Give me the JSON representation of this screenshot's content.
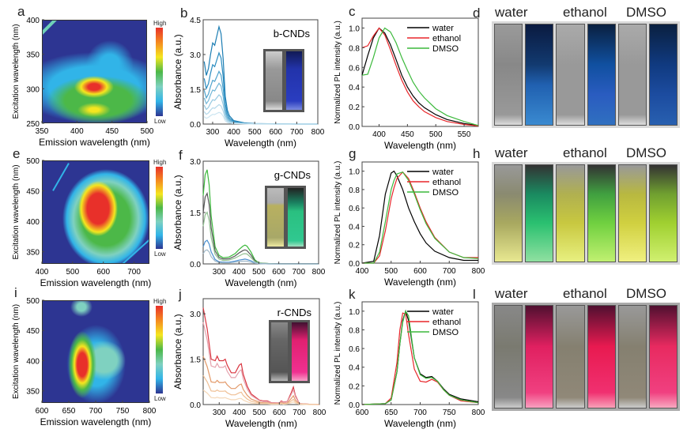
{
  "panels": {
    "a": "a",
    "b": "b",
    "c": "c",
    "d": "d",
    "e": "e",
    "f": "f",
    "g": "g",
    "h": "h",
    "i": "i",
    "j": "j",
    "k": "k",
    "l": "l"
  },
  "colorbar": {
    "high": "High",
    "low": "Low"
  },
  "photo_labels": [
    "water",
    "ethanol",
    "DMSO"
  ],
  "colors": {
    "water": "#000000",
    "ethanol": "#e8262a",
    "DMSO": "#3cb93c"
  },
  "chart_data": [
    {
      "id": "a",
      "type": "heatmap",
      "xlabel": "Emission wavelength (nm)",
      "ylabel": "Excitation wavelength (nm)",
      "xlim": [
        350,
        500
      ],
      "ylim": [
        250,
        400
      ],
      "xticks": [
        350,
        400,
        450,
        500
      ],
      "yticks": [
        250,
        300,
        350,
        400
      ],
      "peaks": [
        [
          410,
          308
        ],
        [
          410,
          272
        ]
      ]
    },
    {
      "id": "b",
      "type": "line",
      "title": "b-CNDs",
      "xlabel": "Wavelength (nm)",
      "ylabel": "Absorbance (a.u.)",
      "xlim": [
        255,
        800
      ],
      "ylim": [
        0,
        4.5
      ],
      "xticks": [
        300,
        400,
        500,
        600,
        700,
        800
      ],
      "yticks": [
        "0.0",
        "1.5",
        "3.0",
        "4.5"
      ],
      "x": [
        260,
        270,
        280,
        290,
        300,
        310,
        320,
        330,
        340,
        350,
        360,
        370,
        380,
        400,
        450,
        500,
        600,
        700,
        800
      ],
      "series": [
        {
          "color": "#1b7db3",
          "values": [
            2.7,
            2.1,
            2.4,
            3.0,
            3.5,
            3.4,
            3.8,
            4.2,
            3.9,
            2.8,
            1.2,
            0.6,
            0.35,
            0.15,
            0.05,
            0.02,
            0.01,
            0,
            0
          ]
        },
        {
          "color": "#2a8cc0",
          "values": [
            1.97,
            1.53,
            1.75,
            2.19,
            2.56,
            2.48,
            2.77,
            3.07,
            2.85,
            2.04,
            0.88,
            0.44,
            0.26,
            0.11,
            0.04,
            0.01,
            0.01,
            0,
            0
          ]
        },
        {
          "color": "#4fa3cd",
          "values": [
            1.46,
            1.13,
            1.3,
            1.62,
            1.89,
            1.84,
            2.05,
            2.27,
            2.11,
            1.51,
            0.65,
            0.32,
            0.19,
            0.08,
            0.03,
            0.01,
            0.01,
            0,
            0
          ]
        },
        {
          "color": "#74b8d8",
          "values": [
            1.13,
            0.88,
            1.01,
            1.26,
            1.47,
            1.43,
            1.6,
            1.76,
            1.64,
            1.18,
            0.5,
            0.25,
            0.15,
            0.06,
            0.02,
            0.01,
            0,
            0,
            0
          ]
        },
        {
          "color": "#96c9e1",
          "values": [
            0.81,
            0.63,
            0.72,
            0.9,
            1.05,
            1.02,
            1.14,
            1.26,
            1.17,
            0.84,
            0.36,
            0.18,
            0.11,
            0.05,
            0.02,
            0.01,
            0,
            0,
            0
          ]
        },
        {
          "color": "#b3d8ea",
          "values": [
            0.54,
            0.42,
            0.48,
            0.6,
            0.7,
            0.68,
            0.76,
            0.84,
            0.78,
            0.56,
            0.24,
            0.12,
            0.07,
            0.03,
            0.01,
            0,
            0,
            0,
            0
          ]
        },
        {
          "color": "#cbe5f1",
          "values": [
            0.32,
            0.25,
            0.29,
            0.36,
            0.42,
            0.41,
            0.46,
            0.5,
            0.47,
            0.34,
            0.14,
            0.07,
            0.04,
            0.02,
            0.01,
            0,
            0,
            0,
            0
          ]
        }
      ]
    },
    {
      "id": "c",
      "type": "line",
      "xlabel": "Wavelength (nm)",
      "ylabel": "Normalized PL intensity (a.u.)",
      "xlim": [
        370,
        575
      ],
      "ylim": [
        0,
        1.1
      ],
      "xticks": [
        400,
        450,
        500,
        550
      ],
      "yticks": [
        "0.0",
        "0.2",
        "0.4",
        "0.6",
        "0.8",
        "1.0"
      ],
      "legend": "top-right",
      "x": [
        370,
        380,
        390,
        400,
        410,
        420,
        430,
        440,
        450,
        460,
        470,
        480,
        500,
        520,
        550,
        575
      ],
      "series": [
        {
          "name": "water",
          "color": "#000000",
          "values": [
            0.52,
            0.72,
            0.9,
            1.0,
            0.95,
            0.83,
            0.68,
            0.52,
            0.4,
            0.31,
            0.24,
            0.19,
            0.12,
            0.07,
            0.03,
            0.01
          ]
        },
        {
          "name": "ethanol",
          "color": "#e8262a",
          "values": [
            0.8,
            0.82,
            0.92,
            1.0,
            0.93,
            0.78,
            0.62,
            0.47,
            0.35,
            0.26,
            0.2,
            0.15,
            0.09,
            0.05,
            0.02,
            0.005
          ]
        },
        {
          "name": "DMSO",
          "color": "#3cb93c",
          "values": [
            0.52,
            0.53,
            0.7,
            0.9,
            1.0,
            0.96,
            0.85,
            0.7,
            0.57,
            0.45,
            0.36,
            0.29,
            0.18,
            0.11,
            0.05,
            0.01
          ]
        }
      ]
    },
    {
      "id": "e",
      "type": "heatmap",
      "xlabel": "Emission wavelength (nm)",
      "ylabel": "Excitation wavelength (nm)",
      "xlim": [
        400,
        750
      ],
      "ylim": [
        330,
        500
      ],
      "xticks": [
        400,
        500,
        600,
        700
      ],
      "yticks": [
        350,
        400,
        450,
        500
      ],
      "peaks": [
        [
          545,
          430
        ]
      ]
    },
    {
      "id": "f",
      "type": "line",
      "title": "g-CNDs",
      "xlabel": "Wavelength (nm)",
      "ylabel": "Absorbance (a.u.)",
      "xlim": [
        220,
        800
      ],
      "ylim": [
        0,
        3.0
      ],
      "xticks": [
        300,
        400,
        500,
        600,
        700,
        800
      ],
      "yticks": [
        "0.0",
        "1.5",
        "3.0"
      ],
      "x": [
        220,
        230,
        240,
        250,
        260,
        280,
        300,
        320,
        350,
        380,
        400,
        420,
        430,
        440,
        460,
        480,
        500,
        550,
        600,
        700,
        800
      ],
      "series": [
        {
          "color": "#3cb93c",
          "values": [
            2.0,
            2.6,
            2.75,
            2.3,
            1.4,
            0.5,
            0.25,
            0.18,
            0.2,
            0.3,
            0.42,
            0.52,
            0.55,
            0.52,
            0.35,
            0.12,
            0.03,
            0.01,
            0.01,
            0.01,
            0.01
          ]
        },
        {
          "color": "#555555",
          "values": [
            1.5,
            1.95,
            2.06,
            1.73,
            1.05,
            0.38,
            0.19,
            0.14,
            0.15,
            0.23,
            0.32,
            0.39,
            0.41,
            0.39,
            0.26,
            0.09,
            0.02,
            0.01,
            0.01,
            0.01,
            0.01
          ]
        },
        {
          "color": "#8fbf8f",
          "values": [
            1.1,
            1.43,
            1.51,
            1.27,
            0.77,
            0.28,
            0.14,
            0.1,
            0.11,
            0.17,
            0.23,
            0.29,
            0.3,
            0.29,
            0.19,
            0.07,
            0.02,
            0.01,
            0,
            0,
            0
          ]
        },
        {
          "color": "#4a8fd0",
          "values": [
            0.5,
            0.65,
            0.69,
            0.58,
            0.35,
            0.13,
            0.06,
            0.05,
            0.05,
            0.08,
            0.11,
            0.13,
            0.14,
            0.13,
            0.09,
            0.03,
            0.01,
            0,
            0,
            0,
            0
          ]
        },
        {
          "color": "#a0b8c8",
          "values": [
            0.3,
            0.39,
            0.41,
            0.35,
            0.21,
            0.08,
            0.04,
            0.03,
            0.03,
            0.05,
            0.07,
            0.08,
            0.08,
            0.08,
            0.05,
            0.02,
            0.01,
            0,
            0,
            0,
            0
          ]
        }
      ]
    },
    {
      "id": "g",
      "type": "line",
      "xlabel": "Wavelength (nm)",
      "ylabel": "Normalized PL intensity (a.u.)",
      "xlim": [
        400,
        800
      ],
      "ylim": [
        0,
        1.1
      ],
      "xticks": [
        400,
        500,
        600,
        700,
        800
      ],
      "yticks": [
        "0.0",
        "0.2",
        "0.4",
        "0.6",
        "0.8",
        "1.0"
      ],
      "legend": "top-right",
      "x": [
        400,
        440,
        460,
        480,
        500,
        510,
        520,
        540,
        560,
        580,
        600,
        620,
        650,
        700,
        750,
        800
      ],
      "series": [
        {
          "name": "water",
          "color": "#000000",
          "values": [
            0,
            0.02,
            0.3,
            0.75,
            0.98,
            1.0,
            0.95,
            0.8,
            0.6,
            0.45,
            0.32,
            0.22,
            0.13,
            0.06,
            0.03,
            0.03
          ]
        },
        {
          "name": "ethanol",
          "color": "#e8262a",
          "values": [
            0,
            0,
            0.08,
            0.35,
            0.7,
            0.82,
            0.92,
            0.99,
            0.92,
            0.77,
            0.6,
            0.45,
            0.28,
            0.12,
            0.06,
            0.06
          ]
        },
        {
          "name": "DMSO",
          "color": "#3cb93c",
          "values": [
            0,
            0,
            0.12,
            0.45,
            0.8,
            0.9,
            0.97,
            0.99,
            0.9,
            0.75,
            0.58,
            0.43,
            0.27,
            0.12,
            0.06,
            0.05
          ]
        }
      ]
    },
    {
      "id": "i",
      "type": "heatmap",
      "xlabel": "Emission wavelength (nm)",
      "ylabel": "Excitation wavelength (nm)",
      "xlim": [
        600,
        800
      ],
      "ylim": [
        330,
        500
      ],
      "xticks": [
        600,
        650,
        700,
        750,
        800
      ],
      "yticks": [
        350,
        400,
        450,
        500
      ],
      "peaks": [
        [
          673,
          400
        ]
      ]
    },
    {
      "id": "j",
      "type": "line",
      "title": "r-CNDs",
      "xlabel": "Wavelength (nm)",
      "ylabel": "Absorbance (a.u.)",
      "xlim": [
        220,
        800
      ],
      "ylim": [
        0,
        3.5
      ],
      "xticks": [
        300,
        400,
        500,
        600,
        700,
        800
      ],
      "yticks": [
        "0.0",
        "1.5",
        "3.0"
      ],
      "x": [
        220,
        240,
        260,
        280,
        290,
        300,
        320,
        330,
        340,
        360,
        380,
        400,
        410,
        420,
        440,
        460,
        500,
        520,
        540,
        560,
        600,
        610,
        620,
        640,
        660,
        670,
        680,
        700,
        750,
        800
      ],
      "series": [
        {
          "color": "#d9343f",
          "values": [
            3.2,
            2.5,
            1.5,
            1.45,
            1.6,
            1.45,
            1.45,
            1.5,
            1.3,
            1.05,
            1.05,
            1.3,
            1.35,
            1.0,
            0.6,
            0.35,
            0.15,
            0.12,
            0.12,
            0.06,
            0.05,
            0.12,
            0.08,
            0.1,
            0.4,
            0.58,
            0.3,
            0.03,
            0.01,
            0
          ]
        },
        {
          "color": "#e5a2ad",
          "values": [
            2.72,
            2.13,
            1.28,
            1.23,
            1.36,
            1.23,
            1.23,
            1.28,
            1.1,
            0.89,
            0.89,
            1.1,
            1.15,
            0.85,
            0.51,
            0.3,
            0.13,
            0.1,
            0.1,
            0.05,
            0.04,
            0.1,
            0.07,
            0.09,
            0.34,
            0.49,
            0.26,
            0.03,
            0.01,
            0
          ]
        },
        {
          "color": "#e39a6a",
          "values": [
            1.6,
            1.25,
            0.75,
            0.73,
            0.8,
            0.73,
            0.73,
            0.75,
            0.65,
            0.53,
            0.53,
            0.65,
            0.68,
            0.5,
            0.3,
            0.18,
            0.08,
            0.06,
            0.06,
            0.03,
            0.03,
            0.06,
            0.04,
            0.05,
            0.2,
            0.29,
            0.15,
            0.02,
            0.01,
            0
          ]
        },
        {
          "color": "#efbf94",
          "values": [
            0.96,
            0.75,
            0.45,
            0.44,
            0.48,
            0.44,
            0.44,
            0.45,
            0.39,
            0.32,
            0.32,
            0.39,
            0.41,
            0.3,
            0.18,
            0.11,
            0.05,
            0.04,
            0.04,
            0.02,
            0.02,
            0.04,
            0.02,
            0.03,
            0.12,
            0.17,
            0.09,
            0.01,
            0,
            0
          ]
        },
        {
          "color": "#f5d8b8",
          "values": [
            0.48,
            0.38,
            0.23,
            0.22,
            0.24,
            0.22,
            0.22,
            0.23,
            0.2,
            0.16,
            0.16,
            0.2,
            0.2,
            0.15,
            0.09,
            0.05,
            0.02,
            0.02,
            0.02,
            0.01,
            0.01,
            0.02,
            0.01,
            0.02,
            0.06,
            0.09,
            0.05,
            0.01,
            0,
            0
          ]
        }
      ]
    },
    {
      "id": "k",
      "type": "line",
      "xlabel": "Wavelength (nm)",
      "ylabel": "Normalized PL intensity (a.u.)",
      "xlim": [
        600,
        800
      ],
      "ylim": [
        0,
        1.1
      ],
      "xticks": [
        600,
        650,
        700,
        750,
        800
      ],
      "yticks": [
        "0.0",
        "0.2",
        "0.4",
        "0.6",
        "0.8",
        "1.0"
      ],
      "legend": "top-right",
      "x": [
        600,
        640,
        650,
        660,
        665,
        670,
        675,
        680,
        690,
        700,
        710,
        720,
        730,
        740,
        750,
        770,
        800
      ],
      "series": [
        {
          "name": "water",
          "color": "#000000",
          "values": [
            0,
            0.01,
            0.05,
            0.35,
            0.65,
            0.9,
            1.0,
            0.9,
            0.5,
            0.33,
            0.29,
            0.3,
            0.25,
            0.17,
            0.11,
            0.06,
            0.03
          ]
        },
        {
          "name": "ethanol",
          "color": "#e8262a",
          "values": [
            0,
            0.01,
            0.07,
            0.45,
            0.8,
            0.98,
            0.97,
            0.75,
            0.38,
            0.25,
            0.24,
            0.27,
            0.24,
            0.16,
            0.1,
            0.04,
            0.02
          ]
        },
        {
          "name": "DMSO",
          "color": "#3cb93c",
          "values": [
            0,
            0.01,
            0.05,
            0.35,
            0.65,
            0.88,
            1.0,
            0.95,
            0.5,
            0.32,
            0.28,
            0.29,
            0.25,
            0.16,
            0.1,
            0.05,
            0.02
          ]
        }
      ]
    }
  ]
}
